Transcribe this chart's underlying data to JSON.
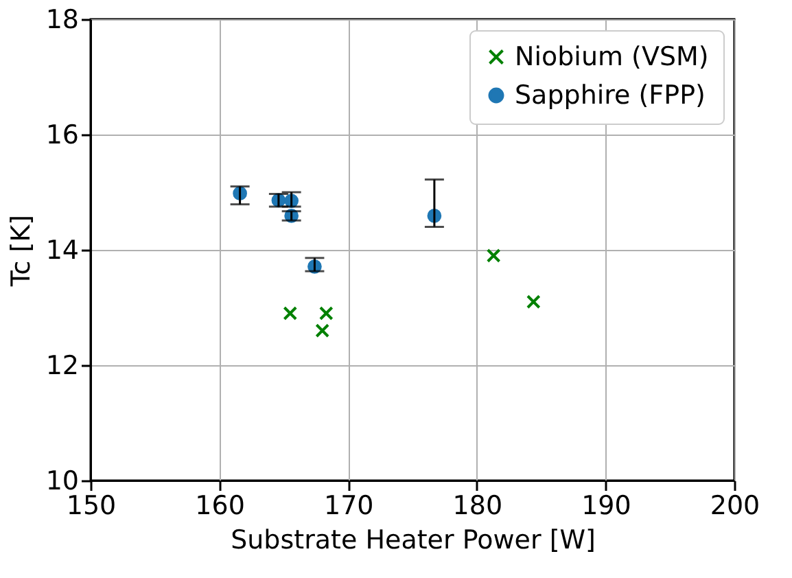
{
  "chart_data": {
    "type": "scatter",
    "xlabel": "Substrate Heater Power [W]",
    "ylabel": "Tc [K]",
    "xlim": [
      150,
      200
    ],
    "xticks": [
      150,
      160,
      170,
      180,
      190,
      200
    ],
    "ylim": [
      10,
      18
    ],
    "yticks": [
      10,
      12,
      14,
      16,
      18
    ],
    "grid": true,
    "legend": "top right",
    "series": [
      {
        "name": "Niobium (VSM)",
        "color": "#008000",
        "marker": "cross",
        "x": [
          165.5,
          168.3,
          168.0,
          181.3,
          184.4
        ],
        "values": [
          12.9,
          12.9,
          12.6,
          13.9,
          13.1
        ]
      },
      {
        "name": "Sapphire (FPP)",
        "color": "#1f77b4",
        "marker": "circle",
        "x": [
          161.6,
          164.6,
          165.6,
          165.6,
          167.4,
          176.7
        ],
        "values": [
          14.98,
          14.86,
          14.85,
          14.59,
          13.71,
          14.59
        ],
        "errors": [
          [
            14.79,
            15.1
          ],
          [
            14.75,
            14.97
          ],
          [
            14.75,
            15.0
          ],
          [
            14.51,
            14.67
          ],
          [
            13.63,
            13.86
          ],
          [
            14.4,
            15.22
          ]
        ]
      }
    ]
  }
}
